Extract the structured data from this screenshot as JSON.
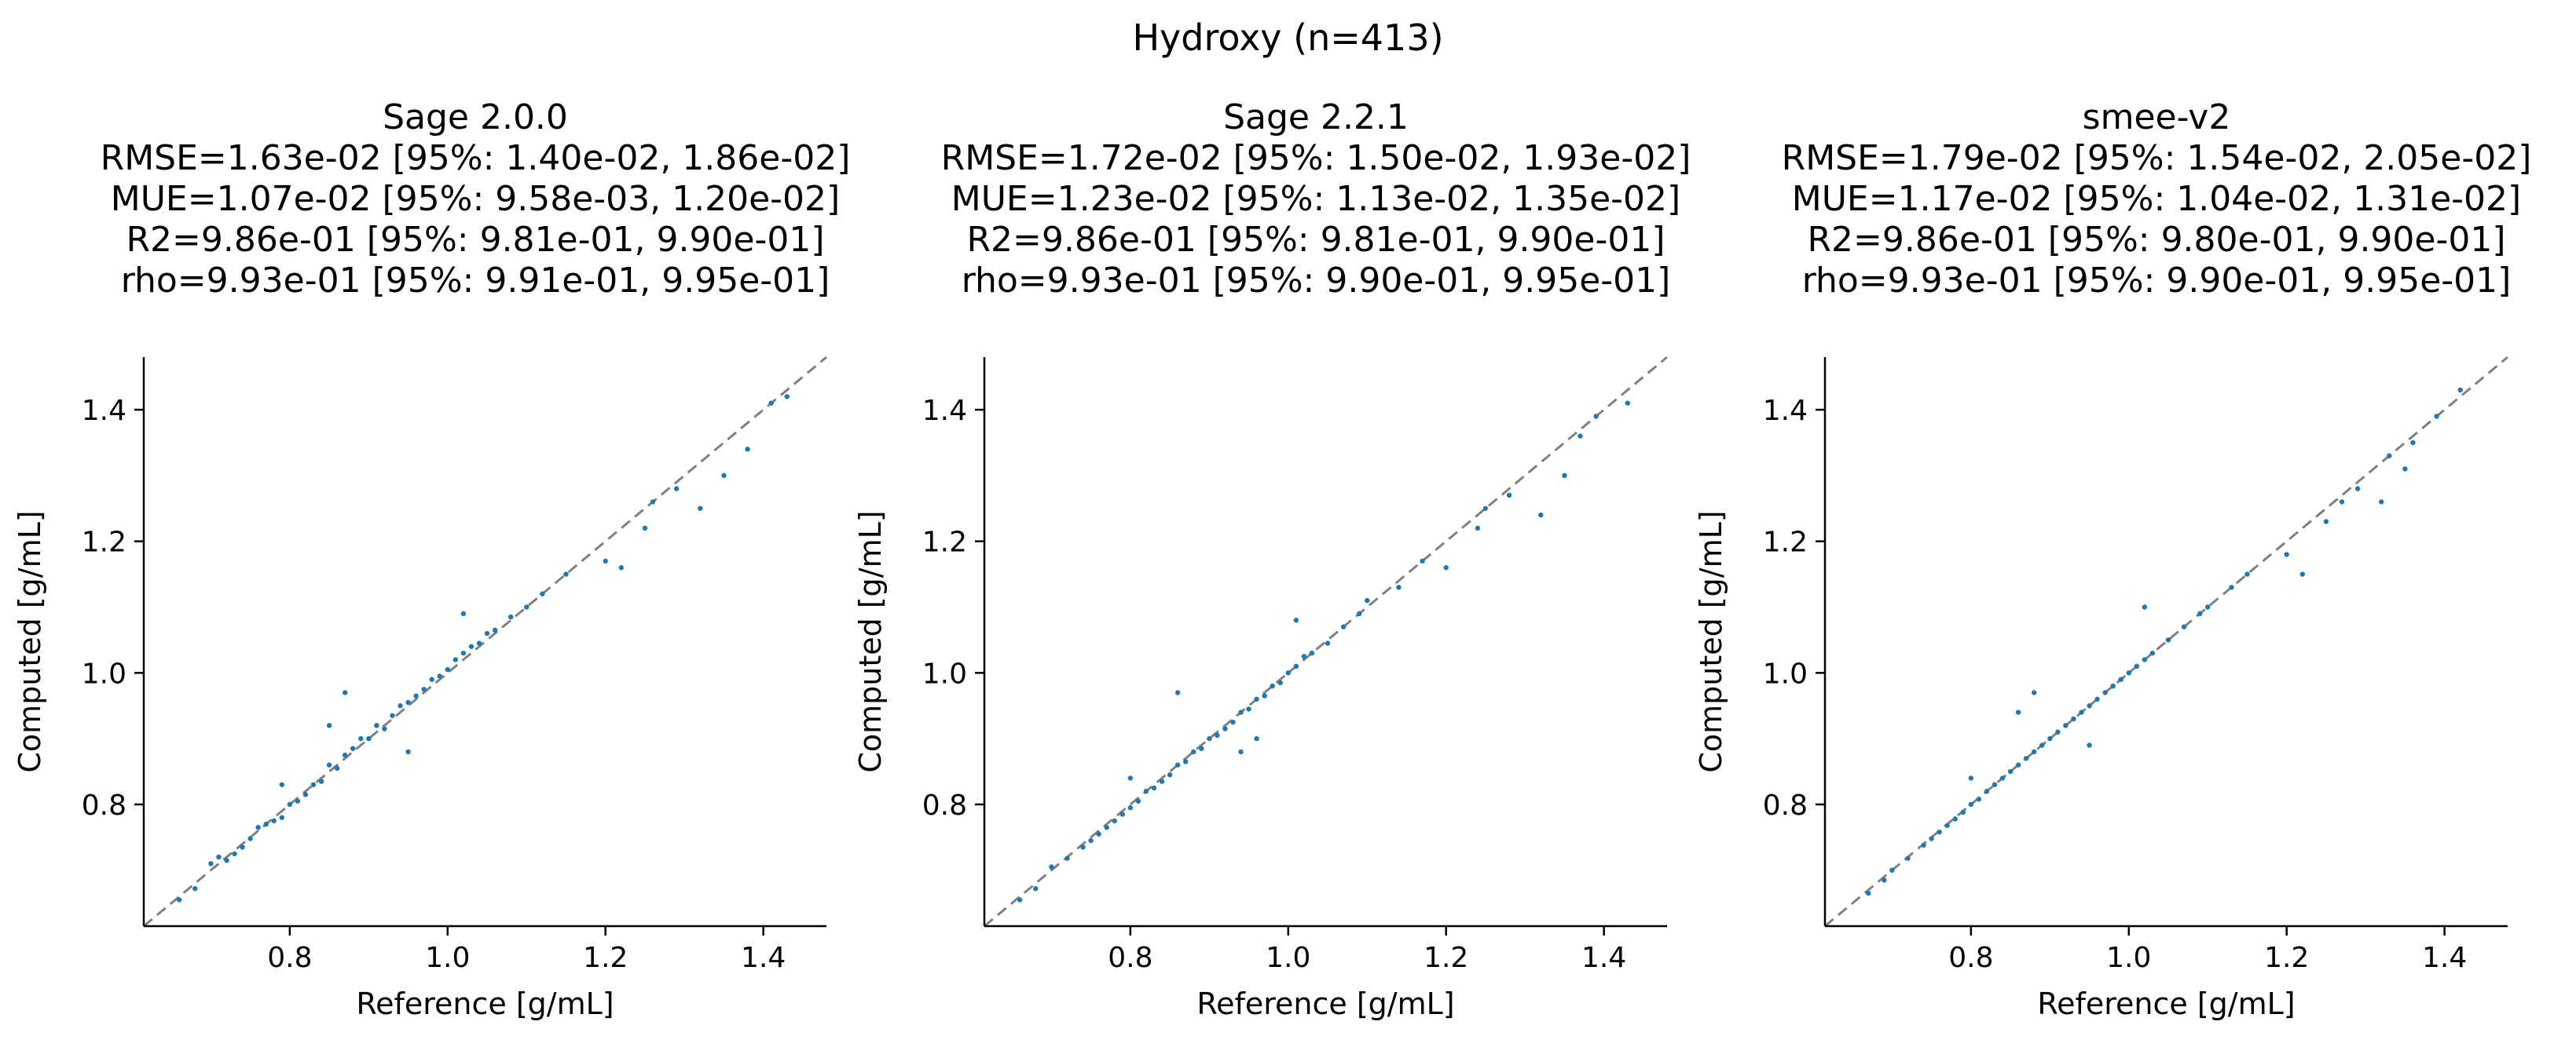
{
  "figure": {
    "title": "Hydroxy (n=413)"
  },
  "axes_common": {
    "xlabel": "Reference [g/mL]",
    "ylabel": "Computed [g/mL]",
    "xlim": [
      0.615,
      1.48
    ],
    "ylim": [
      0.615,
      1.48
    ],
    "xticks": [
      "0.8",
      "1.0",
      "1.2",
      "1.4"
    ],
    "yticks": [
      "0.8",
      "1.0",
      "1.2",
      "1.4"
    ],
    "diagonal_color": "#808080",
    "point_color": "#1f77b4"
  },
  "panels": [
    {
      "title": "Sage 2.0.0",
      "rmse": "RMSE=1.63e-02 [95%: 1.40e-02, 1.86e-02]",
      "mue": "MUE=1.07e-02 [95%: 9.58e-03, 1.20e-02]",
      "r2": "R2=9.86e-01 [95%: 9.81e-01, 9.90e-01]",
      "rho": "rho=9.93e-01 [95%: 9.91e-01, 9.95e-01]"
    },
    {
      "title": "Sage 2.2.1",
      "rmse": "RMSE=1.72e-02 [95%: 1.50e-02, 1.93e-02]",
      "mue": "MUE=1.23e-02 [95%: 1.13e-02, 1.35e-02]",
      "r2": "R2=9.86e-01 [95%: 9.81e-01, 9.90e-01]",
      "rho": "rho=9.93e-01 [95%: 9.90e-01, 9.95e-01]"
    },
    {
      "title": "smee-v2",
      "rmse": "RMSE=1.79e-02 [95%: 1.54e-02, 2.05e-02]",
      "mue": "MUE=1.17e-02 [95%: 1.04e-02, 1.31e-02]",
      "r2": "R2=9.86e-01 [95%: 9.80e-01, 9.90e-01]",
      "rho": "rho=9.93e-01 [95%: 9.90e-01, 9.95e-01]"
    }
  ],
  "chart_data": [
    {
      "type": "scatter",
      "title": "Sage 2.0.0",
      "xlabel": "Reference [g/mL]",
      "ylabel": "Computed [g/mL]",
      "xlim": [
        0.615,
        1.48
      ],
      "ylim": [
        0.615,
        1.48
      ],
      "points": [
        [
          0.66,
          0.655
        ],
        [
          0.68,
          0.672
        ],
        [
          0.7,
          0.71
        ],
        [
          0.71,
          0.72
        ],
        [
          0.72,
          0.715
        ],
        [
          0.73,
          0.725
        ],
        [
          0.74,
          0.735
        ],
        [
          0.75,
          0.748
        ],
        [
          0.76,
          0.765
        ],
        [
          0.77,
          0.77
        ],
        [
          0.78,
          0.775
        ],
        [
          0.79,
          0.78
        ],
        [
          0.8,
          0.8
        ],
        [
          0.81,
          0.805
        ],
        [
          0.82,
          0.815
        ],
        [
          0.83,
          0.83
        ],
        [
          0.84,
          0.835
        ],
        [
          0.85,
          0.86
        ],
        [
          0.86,
          0.855
        ],
        [
          0.87,
          0.875
        ],
        [
          0.88,
          0.885
        ],
        [
          0.89,
          0.9
        ],
        [
          0.9,
          0.9
        ],
        [
          0.91,
          0.92
        ],
        [
          0.92,
          0.915
        ],
        [
          0.93,
          0.935
        ],
        [
          0.94,
          0.95
        ],
        [
          0.95,
          0.955
        ],
        [
          0.96,
          0.965
        ],
        [
          0.97,
          0.975
        ],
        [
          0.98,
          0.99
        ],
        [
          0.99,
          0.995
        ],
        [
          1.0,
          1.005
        ],
        [
          1.01,
          1.02
        ],
        [
          1.02,
          1.03
        ],
        [
          1.03,
          1.04
        ],
        [
          1.04,
          1.045
        ],
        [
          1.05,
          1.06
        ],
        [
          1.06,
          1.065
        ],
        [
          1.08,
          1.085
        ],
        [
          1.1,
          1.1
        ],
        [
          1.12,
          1.12
        ],
        [
          1.15,
          1.15
        ],
        [
          1.2,
          1.17
        ],
        [
          1.22,
          1.16
        ],
        [
          1.25,
          1.22
        ],
        [
          1.26,
          1.26
        ],
        [
          1.29,
          1.28
        ],
        [
          1.32,
          1.25
        ],
        [
          1.35,
          1.3
        ],
        [
          1.38,
          1.34
        ],
        [
          1.41,
          1.41
        ],
        [
          1.43,
          1.42
        ],
        [
          0.87,
          0.97
        ],
        [
          1.02,
          1.09
        ],
        [
          0.79,
          0.83
        ],
        [
          0.85,
          0.92
        ],
        [
          0.95,
          0.88
        ]
      ]
    },
    {
      "type": "scatter",
      "title": "Sage 2.2.1",
      "xlabel": "Reference [g/mL]",
      "ylabel": "Computed [g/mL]",
      "xlim": [
        0.615,
        1.48
      ],
      "ylim": [
        0.615,
        1.48
      ],
      "points": [
        [
          0.66,
          0.655
        ],
        [
          0.68,
          0.672
        ],
        [
          0.7,
          0.705
        ],
        [
          0.72,
          0.718
        ],
        [
          0.74,
          0.735
        ],
        [
          0.75,
          0.745
        ],
        [
          0.76,
          0.755
        ],
        [
          0.77,
          0.765
        ],
        [
          0.78,
          0.775
        ],
        [
          0.79,
          0.785
        ],
        [
          0.8,
          0.795
        ],
        [
          0.81,
          0.805
        ],
        [
          0.82,
          0.82
        ],
        [
          0.83,
          0.825
        ],
        [
          0.84,
          0.835
        ],
        [
          0.85,
          0.845
        ],
        [
          0.86,
          0.86
        ],
        [
          0.87,
          0.865
        ],
        [
          0.88,
          0.88
        ],
        [
          0.89,
          0.885
        ],
        [
          0.9,
          0.9
        ],
        [
          0.91,
          0.905
        ],
        [
          0.92,
          0.915
        ],
        [
          0.93,
          0.925
        ],
        [
          0.94,
          0.94
        ],
        [
          0.95,
          0.945
        ],
        [
          0.96,
          0.96
        ],
        [
          0.97,
          0.965
        ],
        [
          0.98,
          0.98
        ],
        [
          0.99,
          0.985
        ],
        [
          1.0,
          1.0
        ],
        [
          1.01,
          1.01
        ],
        [
          1.02,
          1.025
        ],
        [
          1.03,
          1.03
        ],
        [
          1.05,
          1.045
        ],
        [
          1.07,
          1.07
        ],
        [
          1.09,
          1.09
        ],
        [
          1.1,
          1.11
        ],
        [
          1.14,
          1.13
        ],
        [
          1.17,
          1.17
        ],
        [
          1.2,
          1.16
        ],
        [
          1.24,
          1.22
        ],
        [
          1.25,
          1.25
        ],
        [
          1.28,
          1.27
        ],
        [
          1.32,
          1.24
        ],
        [
          1.35,
          1.3
        ],
        [
          1.37,
          1.36
        ],
        [
          1.39,
          1.39
        ],
        [
          1.43,
          1.41
        ],
        [
          0.86,
          0.97
        ],
        [
          1.01,
          1.08
        ],
        [
          0.8,
          0.84
        ],
        [
          0.94,
          0.88
        ],
        [
          0.96,
          0.9
        ]
      ]
    },
    {
      "type": "scatter",
      "title": "smee-v2",
      "xlabel": "Reference [g/mL]",
      "ylabel": "Computed [g/mL]",
      "xlim": [
        0.615,
        1.48
      ],
      "ylim": [
        0.615,
        1.48
      ],
      "points": [
        [
          0.67,
          0.665
        ],
        [
          0.69,
          0.685
        ],
        [
          0.7,
          0.7
        ],
        [
          0.72,
          0.718
        ],
        [
          0.74,
          0.738
        ],
        [
          0.75,
          0.748
        ],
        [
          0.76,
          0.758
        ],
        [
          0.77,
          0.768
        ],
        [
          0.78,
          0.778
        ],
        [
          0.79,
          0.788
        ],
        [
          0.8,
          0.8
        ],
        [
          0.81,
          0.808
        ],
        [
          0.82,
          0.82
        ],
        [
          0.83,
          0.83
        ],
        [
          0.84,
          0.84
        ],
        [
          0.85,
          0.85
        ],
        [
          0.86,
          0.86
        ],
        [
          0.87,
          0.87
        ],
        [
          0.88,
          0.88
        ],
        [
          0.89,
          0.89
        ],
        [
          0.9,
          0.9
        ],
        [
          0.91,
          0.91
        ],
        [
          0.92,
          0.92
        ],
        [
          0.93,
          0.93
        ],
        [
          0.94,
          0.94
        ],
        [
          0.95,
          0.95
        ],
        [
          0.96,
          0.96
        ],
        [
          0.97,
          0.97
        ],
        [
          0.98,
          0.98
        ],
        [
          0.99,
          0.99
        ],
        [
          1.0,
          1.0
        ],
        [
          1.01,
          1.01
        ],
        [
          1.02,
          1.02
        ],
        [
          1.03,
          1.03
        ],
        [
          1.05,
          1.05
        ],
        [
          1.07,
          1.07
        ],
        [
          1.09,
          1.09
        ],
        [
          1.1,
          1.1
        ],
        [
          1.13,
          1.13
        ],
        [
          1.15,
          1.15
        ],
        [
          1.2,
          1.18
        ],
        [
          1.22,
          1.15
        ],
        [
          1.25,
          1.23
        ],
        [
          1.27,
          1.26
        ],
        [
          1.29,
          1.28
        ],
        [
          1.32,
          1.26
        ],
        [
          1.33,
          1.33
        ],
        [
          1.35,
          1.31
        ],
        [
          1.36,
          1.35
        ],
        [
          1.39,
          1.39
        ],
        [
          1.42,
          1.43
        ],
        [
          0.88,
          0.97
        ],
        [
          1.02,
          1.1
        ],
        [
          0.8,
          0.84
        ],
        [
          0.86,
          0.94
        ],
        [
          0.95,
          0.89
        ]
      ]
    }
  ]
}
